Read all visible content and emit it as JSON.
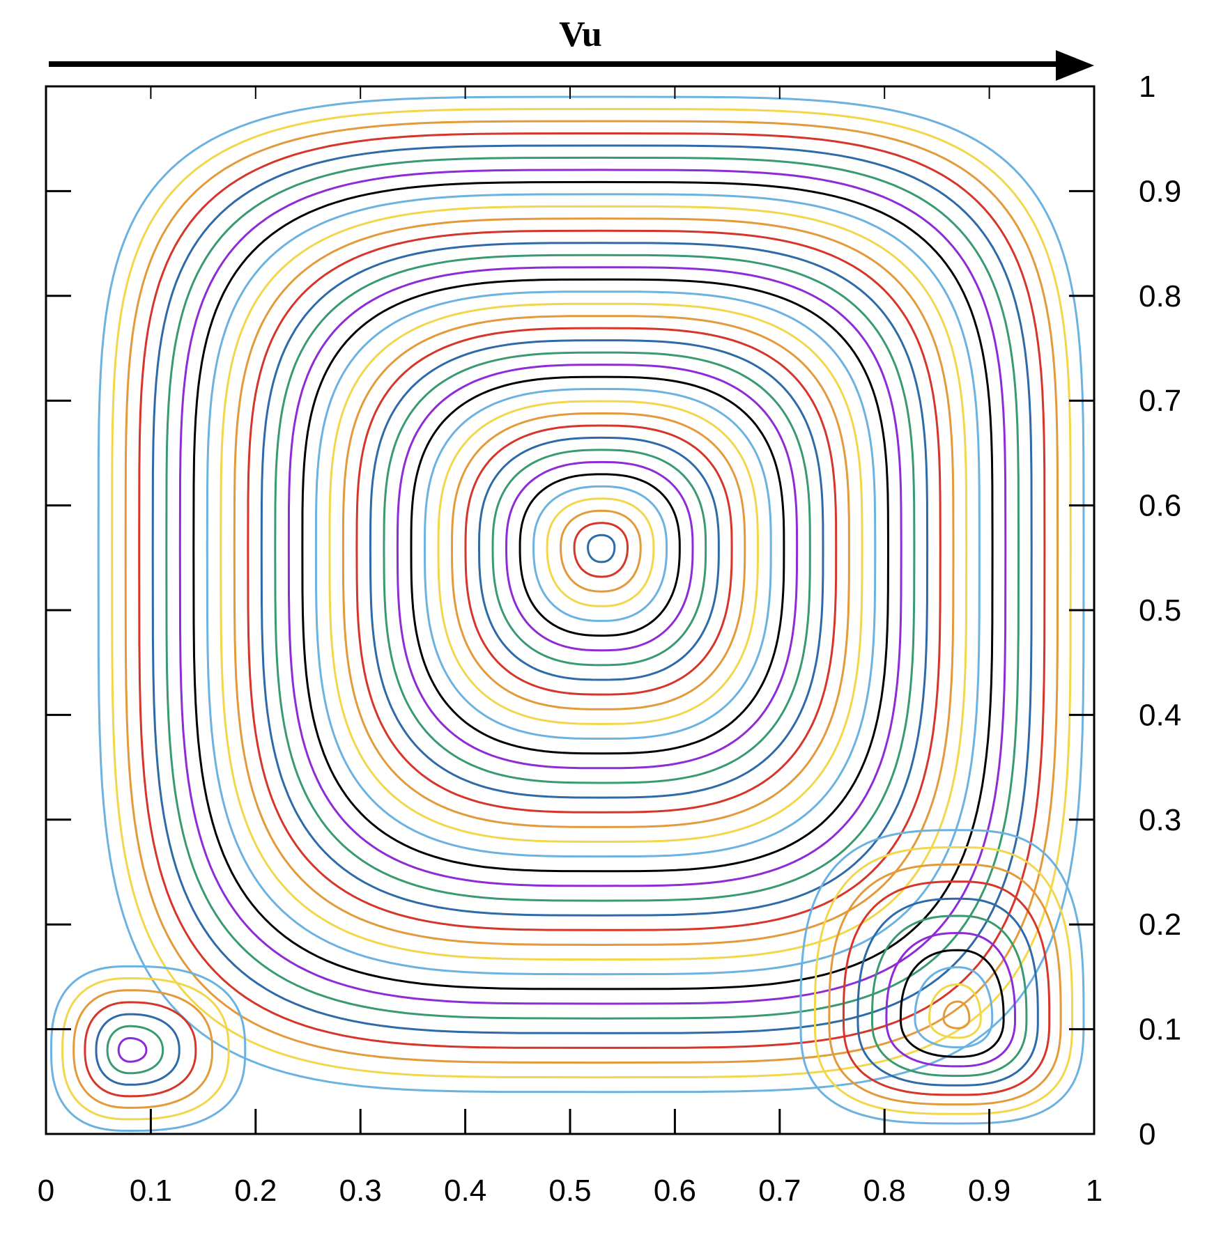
{
  "chart_data": {
    "type": "contour",
    "annotation": "Vu",
    "xlim": [
      0,
      1
    ],
    "ylim": [
      0,
      1
    ],
    "x_ticks": [
      "0",
      "0.1",
      "0.2",
      "0.3",
      "0.4",
      "0.5",
      "0.6",
      "0.7",
      "0.8",
      "0.9",
      "1"
    ],
    "y_ticks": [
      "0",
      "0.1",
      "0.2",
      "0.3",
      "0.4",
      "0.5",
      "0.6",
      "0.7",
      "0.8",
      "0.9",
      "1"
    ],
    "y_axis_side": "right",
    "grid": false,
    "palette": [
      "#6bb2e0",
      "#f2d64b",
      "#e39a3a",
      "#d6362a",
      "#2e6aa8",
      "#3a9a6f",
      "#8e2bd6",
      "#000000"
    ],
    "primary_vortex": {
      "center": [
        0.53,
        0.56
      ],
      "outer_extent_x": [
        0.05,
        0.99
      ],
      "outer_extent_y": [
        0.04,
        0.99
      ],
      "level_count": 37
    },
    "bottom_left_vortex": {
      "center": [
        0.08,
        0.08
      ],
      "extent_x": [
        0.005,
        0.19
      ],
      "extent_y": [
        0.003,
        0.16
      ],
      "level_count": 7
    },
    "bottom_right_vortex": {
      "center": [
        0.87,
        0.11
      ],
      "extent_x": [
        0.72,
        0.99
      ],
      "extent_y": [
        0.01,
        0.29
      ],
      "level_count": 11
    }
  }
}
